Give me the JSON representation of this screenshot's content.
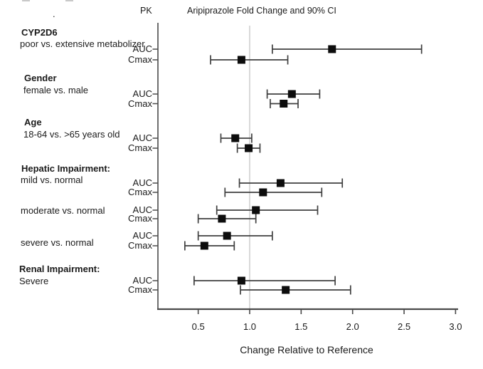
{
  "page": {
    "stray_dot": "."
  },
  "chart_data": {
    "type": "forest",
    "title": "Aripiprazole Fold Change and 90% CI",
    "pk_header": "PK",
    "xlabel": "Change Relative to Reference",
    "xlim": [
      0.12,
      3.03
    ],
    "reference_line": 1.0,
    "grid": "off",
    "xticks": [
      {
        "value": 0.5,
        "label": "0.5"
      },
      {
        "value": 1.0,
        "label": "1.0"
      },
      {
        "value": 1.5,
        "label": "1.5"
      },
      {
        "value": 2.0,
        "label": "2.0"
      },
      {
        "value": 2.5,
        "label": "2.5"
      },
      {
        "value": 3.0,
        "label": "3.0"
      }
    ],
    "colors": {
      "reference_line": "#d9d9d9",
      "ci_line": "#3f3f3f",
      "marker": "#0d0d0d",
      "axis": "#4a4a4a",
      "text": "#1a1a1a"
    },
    "groups": [
      {
        "heading": "CYP2D6",
        "comparisons": [
          {
            "label": "poor vs. extensive metabolizer",
            "entries": [
              {
                "pk": "AUC",
                "est": 1.8,
                "lo": 1.22,
                "hi": 2.67
              },
              {
                "pk": "Cmax",
                "est": 0.92,
                "lo": 0.62,
                "hi": 1.37
              }
            ]
          }
        ]
      },
      {
        "heading": "Gender",
        "comparisons": [
          {
            "label": "female vs. male",
            "entries": [
              {
                "pk": "AUC",
                "est": 1.41,
                "lo": 1.17,
                "hi": 1.68
              },
              {
                "pk": "Cmax",
                "est": 1.33,
                "lo": 1.2,
                "hi": 1.47
              }
            ]
          }
        ]
      },
      {
        "heading": "Age",
        "comparisons": [
          {
            "label": "18-64 vs. >65 years old",
            "entries": [
              {
                "pk": "AUC",
                "est": 0.86,
                "lo": 0.72,
                "hi": 1.02
              },
              {
                "pk": "Cmax",
                "est": 0.99,
                "lo": 0.88,
                "hi": 1.1
              }
            ]
          }
        ]
      },
      {
        "heading": "Hepatic Impairment:",
        "comparisons": [
          {
            "label": "mild vs. normal",
            "entries": [
              {
                "pk": "AUC",
                "est": 1.3,
                "lo": 0.9,
                "hi": 1.9
              },
              {
                "pk": "Cmax",
                "est": 1.13,
                "lo": 0.76,
                "hi": 1.7
              }
            ]
          },
          {
            "label": "moderate vs. normal",
            "entries": [
              {
                "pk": "AUC",
                "est": 1.06,
                "lo": 0.68,
                "hi": 1.66
              },
              {
                "pk": "Cmax",
                "est": 0.73,
                "lo": 0.5,
                "hi": 1.06
              }
            ]
          },
          {
            "label": "severe vs. normal",
            "entries": [
              {
                "pk": "AUC",
                "est": 0.78,
                "lo": 0.5,
                "hi": 1.22
              },
              {
                "pk": "Cmax",
                "est": 0.56,
                "lo": 0.37,
                "hi": 0.85
              }
            ]
          }
        ]
      },
      {
        "heading": "Renal Impairment:",
        "comparisons": [
          {
            "label": "Severe",
            "entries": [
              {
                "pk": "AUC",
                "est": 0.92,
                "lo": 0.46,
                "hi": 1.83
              },
              {
                "pk": "Cmax",
                "est": 1.35,
                "lo": 0.91,
                "hi": 1.98
              }
            ]
          }
        ]
      }
    ]
  }
}
